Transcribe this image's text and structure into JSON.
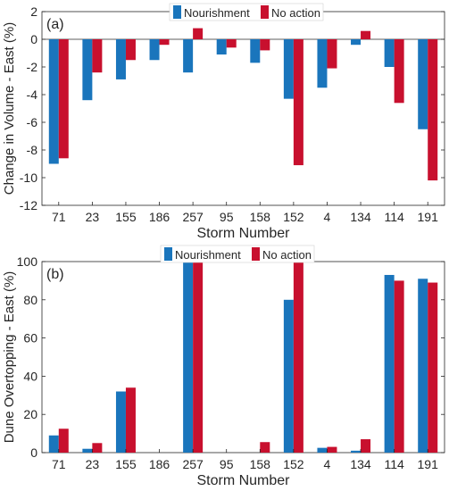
{
  "colors": {
    "nourishment": "#1a75bc",
    "no_action": "#c8102e"
  },
  "chart_data": [
    {
      "type": "bar",
      "panel_label": "(a)",
      "xlabel": "Storm Number",
      "ylabel": "Change in Volume - East (%)",
      "ylim": [
        -12,
        2
      ],
      "yticks": [
        -12,
        -10,
        -8,
        -6,
        -4,
        -2,
        0,
        2
      ],
      "grid": false,
      "legend_position": "top-center",
      "categories": [
        "71",
        "23",
        "155",
        "186",
        "257",
        "95",
        "158",
        "152",
        "4",
        "134",
        "114",
        "191"
      ],
      "series": [
        {
          "name": "Nourishment",
          "values": [
            -9.0,
            -4.4,
            -2.9,
            -1.5,
            -2.4,
            -1.1,
            -1.7,
            -4.3,
            -3.5,
            -0.4,
            -2.0,
            -6.5
          ]
        },
        {
          "name": "No action",
          "values": [
            -8.6,
            -2.4,
            -1.5,
            -0.4,
            0.8,
            -0.6,
            -0.8,
            -9.1,
            -2.1,
            0.6,
            -4.6,
            -10.2
          ]
        }
      ]
    },
    {
      "type": "bar",
      "panel_label": "(b)",
      "xlabel": "Storm Number",
      "ylabel": "Dune Overtopping - East (%)",
      "ylim": [
        0,
        100
      ],
      "yticks": [
        0,
        20,
        40,
        60,
        80,
        100
      ],
      "grid": false,
      "legend_position": "top-center",
      "categories": [
        "71",
        "23",
        "155",
        "186",
        "257",
        "95",
        "158",
        "152",
        "4",
        "134",
        "114",
        "191"
      ],
      "series": [
        {
          "name": "Nourishment",
          "values": [
            9,
            2,
            32,
            0,
            100,
            0,
            0,
            80,
            2.5,
            1,
            93,
            91
          ]
        },
        {
          "name": "No action",
          "values": [
            12.5,
            5,
            34,
            0,
            100,
            0,
            5.5,
            100,
            3,
            7,
            90,
            89
          ]
        }
      ]
    }
  ]
}
